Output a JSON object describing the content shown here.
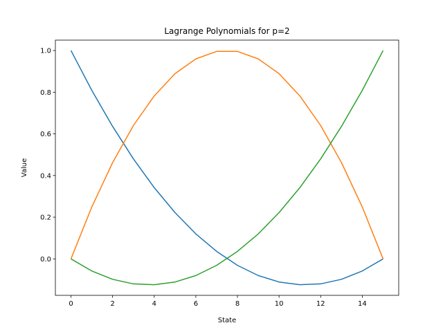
{
  "chart_data": {
    "type": "line",
    "title": "Lagrange Polynomials for p=2",
    "xlabel": "State",
    "ylabel": "Value",
    "x": [
      0,
      1,
      2,
      3,
      4,
      5,
      6,
      7,
      8,
      9,
      10,
      11,
      12,
      13,
      14,
      15
    ],
    "xlim": [
      -0.75,
      15.75
    ],
    "ylim": [
      -0.175,
      1.05
    ],
    "xticks": [
      0,
      2,
      4,
      6,
      8,
      10,
      12,
      14
    ],
    "yticks": [
      0.0,
      0.2,
      0.4,
      0.6,
      0.8,
      1.0
    ],
    "grid": false,
    "legend": "none",
    "series": [
      {
        "color": "#1f77b4",
        "values": [
          1.0,
          0.809,
          0.636,
          0.48,
          0.342,
          0.222,
          0.12,
          0.036,
          -0.031,
          -0.08,
          -0.111,
          -0.124,
          -0.12,
          -0.098,
          -0.058,
          0.0
        ]
      },
      {
        "color": "#ff7f0e",
        "values": [
          0.0,
          0.249,
          0.462,
          0.64,
          0.782,
          0.889,
          0.96,
          0.996,
          0.996,
          0.96,
          0.889,
          0.782,
          0.64,
          0.462,
          0.249,
          0.0
        ]
      },
      {
        "color": "#2ca02c",
        "values": [
          0.0,
          -0.058,
          -0.098,
          -0.12,
          -0.124,
          -0.111,
          -0.08,
          -0.031,
          0.036,
          0.12,
          0.222,
          0.342,
          0.48,
          0.636,
          0.809,
          1.0
        ]
      }
    ]
  }
}
